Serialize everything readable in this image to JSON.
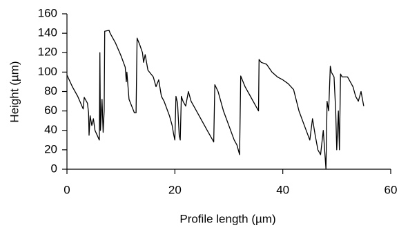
{
  "chart_data": {
    "type": "line",
    "x_label": "Profile length (µm)",
    "y_label": "Height (µm)",
    "x": [
      0,
      1,
      2,
      3,
      3.2,
      3.8,
      4,
      4.1,
      4.3,
      4.6,
      4.9,
      5.2,
      5.6,
      6,
      6.1,
      6.2,
      6.5,
      6.7,
      6.9,
      7,
      7.8,
      8,
      9,
      10,
      10.8,
      11,
      11.1,
      11.5,
      12,
      12.5,
      12.8,
      13,
      13.5,
      14,
      14.2,
      14.5,
      15,
      16,
      16.5,
      17,
      17.5,
      18,
      19,
      19.5,
      19.8,
      20,
      20.2,
      20.5,
      20.8,
      21,
      21.2,
      21.5,
      22,
      22.5,
      23,
      24,
      25,
      26,
      27,
      27.2,
      27.4,
      28,
      29,
      30,
      31,
      31.5,
      32,
      32.2,
      33,
      34,
      35,
      35.5,
      35.6,
      36,
      37,
      38,
      39,
      40,
      41,
      42,
      43,
      44,
      45,
      45.5,
      46,
      46.5,
      47,
      47.5,
      48,
      48.2,
      48.5,
      48.8,
      49,
      49.5,
      49.8,
      50,
      50.3,
      50.5,
      50.7,
      51,
      52,
      53,
      53.5,
      54,
      54.5,
      55
    ],
    "values": [
      97,
      85,
      75,
      62,
      74,
      68,
      58,
      35,
      55,
      45,
      52,
      40,
      35,
      30,
      120,
      40,
      72,
      38,
      60,
      142,
      143,
      140,
      130,
      117,
      105,
      90,
      100,
      72,
      65,
      58,
      58,
      135,
      128,
      120,
      110,
      118,
      102,
      95,
      85,
      92,
      75,
      70,
      55,
      45,
      35,
      30,
      75,
      68,
      35,
      30,
      75,
      70,
      65,
      80,
      70,
      60,
      50,
      40,
      30,
      28,
      87,
      80,
      60,
      45,
      30,
      25,
      15,
      96,
      85,
      75,
      65,
      60,
      113,
      110,
      108,
      100,
      95,
      92,
      88,
      82,
      60,
      45,
      30,
      52,
      35,
      20,
      15,
      40,
      0,
      70,
      60,
      106,
      100,
      95,
      60,
      20,
      60,
      20,
      98,
      95,
      95,
      85,
      75,
      70,
      80,
      65
    ],
    "color": "#000000",
    "xlim": [
      0,
      60
    ],
    "xticks": [
      0,
      20,
      40,
      60
    ],
    "ylim": [
      0,
      160
    ],
    "yticks": [
      0,
      20,
      40,
      60,
      80,
      100,
      120,
      140,
      160
    ]
  }
}
